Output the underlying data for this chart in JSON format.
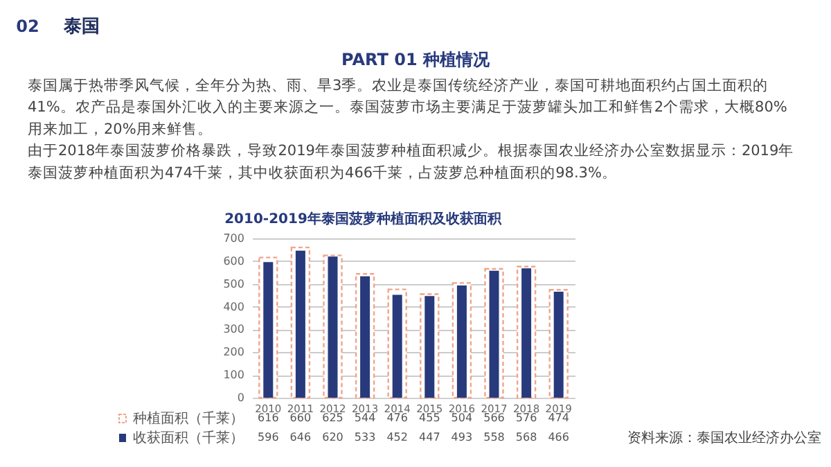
{
  "chart_data": {
    "type": "bar",
    "title": "2010-2019年泰国菠萝种植面积及收获面积",
    "categories": [
      "2010",
      "2011",
      "2012",
      "2013",
      "2014",
      "2015",
      "2016",
      "2017",
      "2018",
      "2019"
    ],
    "series": [
      {
        "name": "种植面积（千莱）",
        "color": "#f2a48c",
        "line_style": "dashed",
        "values": [
          616,
          660,
          625,
          544,
          476,
          455,
          504,
          566,
          576,
          474
        ]
      },
      {
        "name": "收获面积（千莱）",
        "color": "#283a7c",
        "values": [
          596,
          646,
          620,
          533,
          452,
          447,
          493,
          558,
          568,
          466
        ]
      }
    ],
    "ylim": [
      0,
      700
    ],
    "yticks": [
      0,
      100,
      200,
      300,
      400,
      500,
      600,
      700
    ],
    "grid": "y",
    "legend": "bottom",
    "data_labels": true,
    "annotations": [
      "02",
      "泰国",
      "PART 01  种植情况",
      "泰国属于热带季风气候，全年分为热、雨、旱3季。农业是泰国传统经济产业，泰国可耕地面积约占国土面积的",
      "41%。农产品是泰国外汇收入的主要来源之一。泰国菠萝市场主要满足于菠萝罐头加工和鲜售2个需求，大概80%",
      "用来加工，20%用来鲜售。",
      "由于2018年泰国菠萝价格暴跌，导致2019年泰国菠萝种植面积减少。根据泰国农业经济办公室数据显示：2019年",
      "泰国菠萝种植面积为474千莱，其中收获面积为466千莱，占菠萝总种植面积的98.3%。",
      "资料来源：泰国农业经济办公室"
    ]
  }
}
